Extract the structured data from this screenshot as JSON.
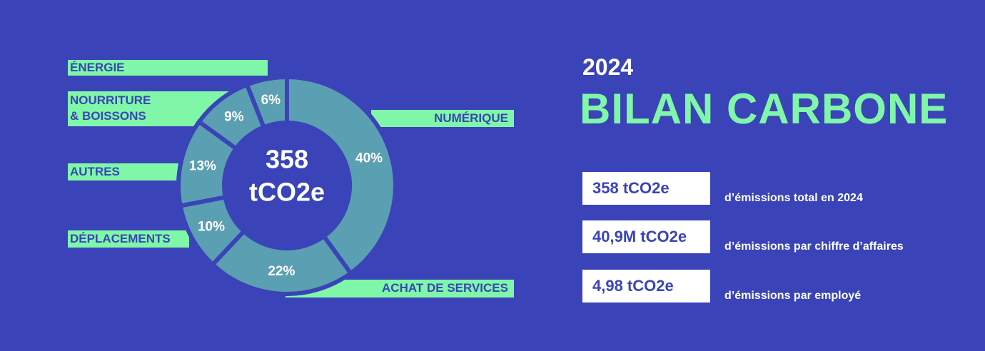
{
  "chart_data": {
    "type": "donut",
    "categories": [
      "NUMÉRIQUE",
      "ACHAT DE SERVICES",
      "DÉPLACEMENTS",
      "AUTRES",
      "NOURRITURE & BOISSONS",
      "ÉNERGIE"
    ],
    "values": [
      40,
      22,
      10,
      13,
      9,
      6
    ],
    "value_labels": [
      "40%",
      "22%",
      "10%",
      "13%",
      "9%",
      "6%"
    ],
    "color": "#5b9fb2",
    "center_value": 358,
    "center_unit": "tCO2e"
  },
  "header": {
    "year": "2024",
    "title": "BILAN CARBONE"
  },
  "stats": [
    {
      "value": "358 tCO2e",
      "label": "d’émissions total en 2024"
    },
    {
      "value": "40,9M tCO2e",
      "label": "d’émissions par chiffre d’affaires"
    },
    {
      "value": "4,98 tCO2e",
      "label": "d’émissions par employé"
    }
  ]
}
